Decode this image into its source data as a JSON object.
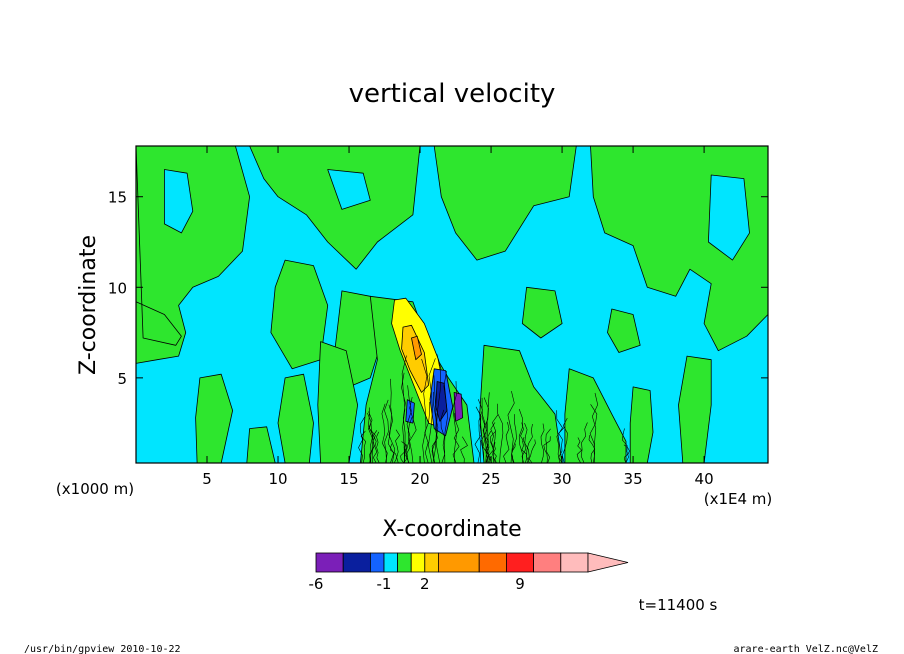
{
  "chart_data": {
    "type": "heatmap",
    "title": "vertical velocity",
    "xlabel": "X-coordinate",
    "ylabel": "Z-coordinate",
    "x_unit_left": "(x1000 m)",
    "x_unit_right": "(x1E4 m)",
    "xlim": [
      0,
      44.5
    ],
    "ylim": [
      0.3,
      17.8
    ],
    "xticks": [
      5,
      10,
      15,
      20,
      25,
      30,
      35,
      40
    ],
    "yticks": [
      5,
      10,
      15
    ],
    "colorbar": {
      "levels": [
        -6,
        -4,
        -2,
        -1,
        0,
        1,
        2,
        3,
        6,
        8,
        10,
        12,
        14
      ],
      "colors": [
        "#7b1fb8",
        "#0a1f9e",
        "#1463ff",
        "#00e5ff",
        "#2ee62e",
        "#ffff00",
        "#ffcc00",
        "#ff9900",
        "#ff6a00",
        "#ff1f1f",
        "#ff7f7f",
        "#ffbcbc"
      ],
      "labels": [
        {
          "value": -6,
          "text": "-6"
        },
        {
          "value": -1,
          "text": "-1"
        },
        {
          "value": 2,
          "text": "2"
        },
        {
          "value": 9,
          "text": "9"
        }
      ],
      "extend": "max"
    },
    "time_label": "t=11400 s",
    "legend": "none",
    "grid": false
  },
  "footer": {
    "left": "/usr/bin/gpview  2010-10-22",
    "right": "arare-earth_VelZ.nc@VelZ"
  },
  "colors": {
    "background_field": "#00e5ff",
    "green_field": "#2ee62e"
  }
}
